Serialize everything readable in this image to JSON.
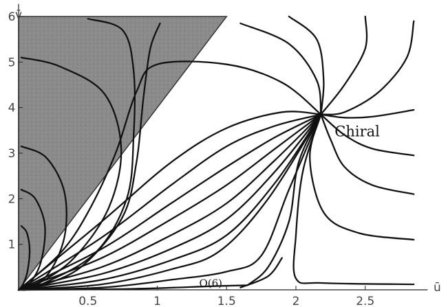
{
  "chart_data": {
    "type": "line",
    "title": "",
    "xlabel": "ū",
    "ylabel": "v̄",
    "xlim": [
      0,
      2.9
    ],
    "ylim": [
      0,
      6.2
    ],
    "x_ticks": [
      {
        "value": 0.5,
        "label": "0.5"
      },
      {
        "value": 1,
        "label": "1"
      },
      {
        "value": 1.5,
        "label": "1.5"
      },
      {
        "value": 2,
        "label": "2"
      },
      {
        "value": 2.5,
        "label": "2.5"
      }
    ],
    "y_ticks": [
      {
        "value": 1,
        "label": "1"
      },
      {
        "value": 2,
        "label": "2"
      },
      {
        "value": 3,
        "label": "3"
      },
      {
        "value": 4,
        "label": "4"
      },
      {
        "value": 5,
        "label": "5"
      },
      {
        "value": 6,
        "label": "6"
      }
    ],
    "grid": false,
    "shaded_region": {
      "polygon": [
        [
          0,
          0
        ],
        [
          0,
          6
        ],
        [
          1.5,
          6
        ]
      ],
      "fill": "#8c8c8c"
    },
    "fixed_points": [
      {
        "name": "chiral",
        "label": "Chiral",
        "x": 2.18,
        "y": 3.85
      },
      {
        "name": "o6",
        "label": "O(6)",
        "x": 1.65,
        "y": 0.1
      }
    ],
    "series": [
      {
        "points": [
          [
            0.02,
            1.4
          ],
          [
            0.06,
            1.25
          ],
          [
            0.08,
            0.85
          ],
          [
            0.06,
            0.35
          ],
          [
            0.02,
            0.05
          ],
          [
            0,
            0
          ]
        ]
      },
      {
        "points": [
          [
            0.02,
            2.2
          ],
          [
            0.12,
            2.0
          ],
          [
            0.19,
            1.4
          ],
          [
            0.16,
            0.6
          ],
          [
            0.07,
            0.1
          ],
          [
            0,
            0
          ]
        ]
      },
      {
        "points": [
          [
            0.02,
            3.15
          ],
          [
            0.2,
            2.9
          ],
          [
            0.33,
            2.15
          ],
          [
            0.33,
            1.15
          ],
          [
            0.2,
            0.3
          ],
          [
            0,
            0
          ]
        ]
      },
      {
        "points": [
          [
            0.02,
            5.1
          ],
          [
            0.3,
            4.9
          ],
          [
            0.62,
            4.3
          ],
          [
            0.74,
            3.1
          ],
          [
            0.65,
            1.8
          ],
          [
            0.4,
            0.7
          ],
          [
            0.12,
            0.1
          ],
          [
            0,
            0
          ]
        ]
      },
      {
        "points": [
          [
            0.5,
            5.95
          ],
          [
            0.75,
            5.7
          ],
          [
            0.83,
            4.8
          ],
          [
            0.83,
            3.4
          ],
          [
            0.78,
            2.0
          ],
          [
            0.55,
            0.8
          ],
          [
            0.15,
            0.1
          ],
          [
            0,
            0
          ]
        ]
      },
      {
        "points": [
          [
            1.02,
            5.85
          ],
          [
            0.95,
            5.3
          ],
          [
            0.9,
            4.2
          ],
          [
            0.85,
            2.8
          ],
          [
            0.75,
            1.6
          ],
          [
            0.45,
            0.5
          ],
          [
            0.12,
            0.05
          ],
          [
            0,
            0
          ]
        ]
      },
      {
        "points": [
          [
            0.0,
            0.0
          ],
          [
            0.3,
            0.8
          ],
          [
            0.5,
            1.7
          ],
          [
            0.7,
            3.0
          ],
          [
            0.85,
            4.35
          ],
          [
            1.0,
            4.95
          ],
          [
            1.5,
            4.95
          ],
          [
            1.9,
            4.55
          ],
          [
            2.18,
            3.85
          ]
        ]
      },
      {
        "points": [
          [
            0.0,
            0.0
          ],
          [
            0.6,
            1.5
          ],
          [
            1.1,
            2.8
          ],
          [
            1.5,
            3.55
          ],
          [
            1.9,
            3.9
          ],
          [
            2.18,
            3.85
          ]
        ]
      },
      {
        "points": [
          [
            0.0,
            0.0
          ],
          [
            0.6,
            1.15
          ],
          [
            1.1,
            2.3
          ],
          [
            1.5,
            3.15
          ],
          [
            1.85,
            3.6
          ],
          [
            2.18,
            3.85
          ]
        ]
      },
      {
        "points": [
          [
            0.0,
            0.0
          ],
          [
            0.6,
            0.9
          ],
          [
            1.1,
            1.9
          ],
          [
            1.5,
            2.7
          ],
          [
            1.85,
            3.35
          ],
          [
            2.18,
            3.85
          ]
        ]
      },
      {
        "points": [
          [
            0.0,
            0.0
          ],
          [
            0.6,
            0.7
          ],
          [
            1.1,
            1.55
          ],
          [
            1.5,
            2.3
          ],
          [
            1.85,
            3.1
          ],
          [
            2.18,
            3.85
          ]
        ]
      },
      {
        "points": [
          [
            0.0,
            0.0
          ],
          [
            0.6,
            0.5
          ],
          [
            1.1,
            1.2
          ],
          [
            1.5,
            1.9
          ],
          [
            1.85,
            2.85
          ],
          [
            2.18,
            3.85
          ]
        ]
      },
      {
        "points": [
          [
            0.0,
            0.0
          ],
          [
            0.6,
            0.35
          ],
          [
            1.1,
            0.9
          ],
          [
            1.5,
            1.55
          ],
          [
            1.85,
            2.6
          ],
          [
            2.18,
            3.85
          ]
        ]
      },
      {
        "points": [
          [
            0.0,
            0.0
          ],
          [
            0.6,
            0.22
          ],
          [
            1.1,
            0.65
          ],
          [
            1.5,
            1.2
          ],
          [
            1.85,
            2.35
          ],
          [
            2.18,
            3.85
          ]
        ]
      },
      {
        "points": [
          [
            0.0,
            0.0
          ],
          [
            0.6,
            0.12
          ],
          [
            1.1,
            0.45
          ],
          [
            1.45,
            0.85
          ],
          [
            1.8,
            2.0
          ],
          [
            2.18,
            3.85
          ]
        ]
      },
      {
        "points": [
          [
            0.0,
            0.0
          ],
          [
            0.6,
            0.05
          ],
          [
            1.1,
            0.22
          ],
          [
            1.5,
            0.4
          ],
          [
            1.75,
            0.75
          ],
          [
            1.95,
            2.2
          ],
          [
            2.18,
            3.85
          ]
        ]
      },
      {
        "points": [
          [
            0.0,
            0.0
          ],
          [
            0.8,
            0.02
          ],
          [
            1.4,
            0.08
          ],
          [
            1.65,
            0.1
          ]
        ]
      },
      {
        "points": [
          [
            1.65,
            0.1
          ],
          [
            1.8,
            0.5
          ],
          [
            1.95,
            1.5
          ],
          [
            2.02,
            2.8
          ],
          [
            2.18,
            3.85
          ]
        ]
      },
      {
        "points": [
          [
            1.6,
            0.05
          ],
          [
            1.8,
            0.3
          ],
          [
            1.9,
            0.7
          ]
        ]
      },
      {
        "points": [
          [
            2.85,
            0.12
          ],
          [
            2.2,
            0.15
          ],
          [
            2.0,
            0.25
          ],
          [
            2.0,
            1.2
          ],
          [
            2.05,
            2.6
          ],
          [
            2.18,
            3.85
          ]
        ]
      },
      {
        "points": [
          [
            2.85,
            1.1
          ],
          [
            2.45,
            1.25
          ],
          [
            2.2,
            1.7
          ],
          [
            2.1,
            2.9
          ],
          [
            2.18,
            3.85
          ]
        ]
      },
      {
        "points": [
          [
            2.85,
            2.1
          ],
          [
            2.55,
            2.3
          ],
          [
            2.35,
            2.7
          ],
          [
            2.25,
            3.3
          ],
          [
            2.18,
            3.85
          ]
        ]
      },
      {
        "points": [
          [
            2.85,
            2.95
          ],
          [
            2.55,
            3.1
          ],
          [
            2.35,
            3.4
          ],
          [
            2.18,
            3.85
          ]
        ]
      },
      {
        "points": [
          [
            2.85,
            3.95
          ],
          [
            2.55,
            3.8
          ],
          [
            2.35,
            3.78
          ],
          [
            2.18,
            3.85
          ]
        ]
      },
      {
        "points": [
          [
            2.85,
            5.9
          ],
          [
            2.8,
            5.1
          ],
          [
            2.6,
            4.35
          ],
          [
            2.35,
            3.9
          ],
          [
            2.18,
            3.85
          ]
        ]
      },
      {
        "points": [
          [
            2.5,
            6.0
          ],
          [
            2.5,
            5.3
          ],
          [
            2.35,
            4.5
          ],
          [
            2.18,
            3.85
          ]
        ]
      },
      {
        "points": [
          [
            1.95,
            6.0
          ],
          [
            2.15,
            5.5
          ],
          [
            2.2,
            4.6
          ],
          [
            2.18,
            3.85
          ]
        ]
      },
      {
        "points": [
          [
            1.6,
            5.85
          ],
          [
            1.95,
            5.4
          ],
          [
            2.15,
            4.6
          ],
          [
            2.18,
            3.85
          ]
        ]
      }
    ]
  }
}
